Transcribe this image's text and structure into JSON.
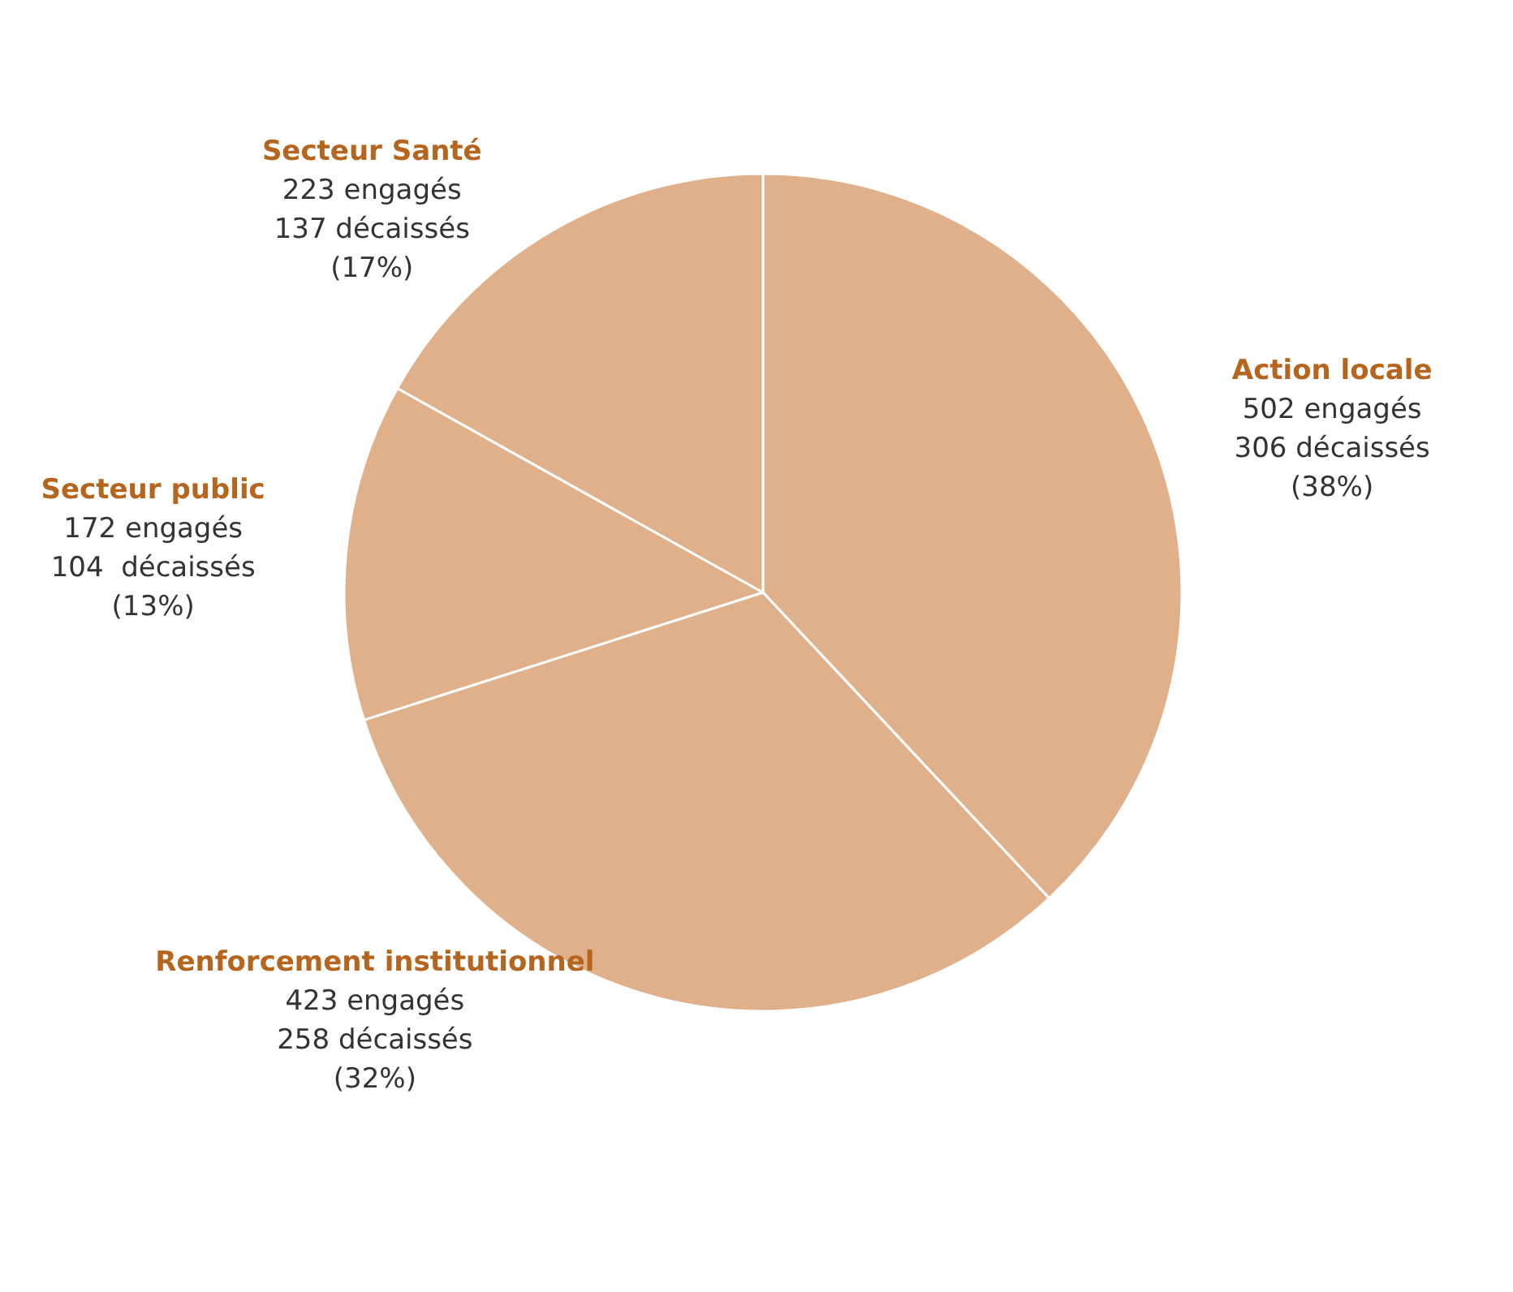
{
  "chart_data": {
    "type": "pie",
    "categories": [
      "Action locale",
      "Renforcement institutionnel",
      "Secteur public",
      "Secteur Santé"
    ],
    "values": [
      502,
      423,
      172,
      223
    ],
    "value_labels": [
      "502 engagés\n306 décaissés\n(38%)",
      "423 engagés\n258 décaissés\n(32%)",
      "172 engagés\n104  décaissés\n(13%)",
      "223 engagés\n137 décaissés\n(17%)"
    ],
    "colors": [
      "#dfb08a",
      "#dfb08a",
      "#dfb08a",
      "#dfb08a"
    ],
    "legend": false
  }
}
